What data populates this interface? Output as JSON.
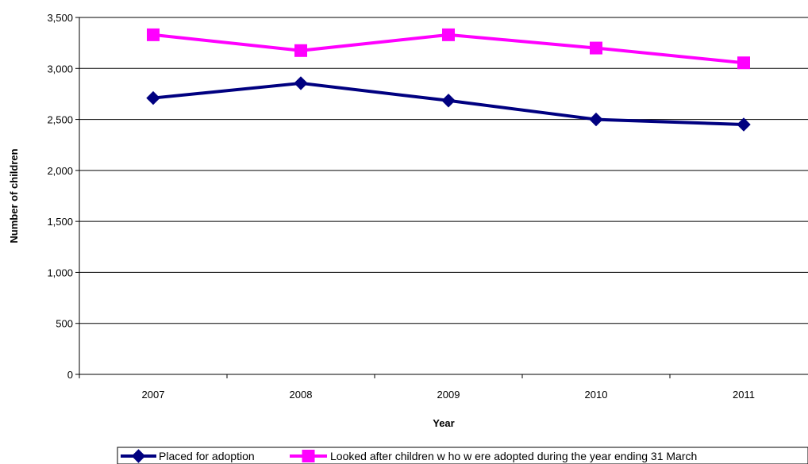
{
  "chart_data": {
    "type": "line",
    "title": "",
    "xlabel": "Year",
    "ylabel": "Number of children",
    "categories": [
      "2007",
      "2008",
      "2009",
      "2010",
      "2011"
    ],
    "ylim": [
      0,
      3500
    ],
    "yticks": [
      "0",
      "500",
      "1,000",
      "1,500",
      "2,000",
      "2,500",
      "3,000",
      "3,500"
    ],
    "grid": true,
    "legend_position": "bottom",
    "series": [
      {
        "name": "Placed for adoption",
        "values": [
          2710,
          2855,
          2685,
          2500,
          2450
        ],
        "color": "#000080",
        "marker": "diamond"
      },
      {
        "name": "Looked after children w ho w ere adopted during the year ending 31 March",
        "values": [
          3330,
          3175,
          3330,
          3200,
          3055
        ],
        "color": "#ff00ff",
        "marker": "square"
      }
    ]
  }
}
